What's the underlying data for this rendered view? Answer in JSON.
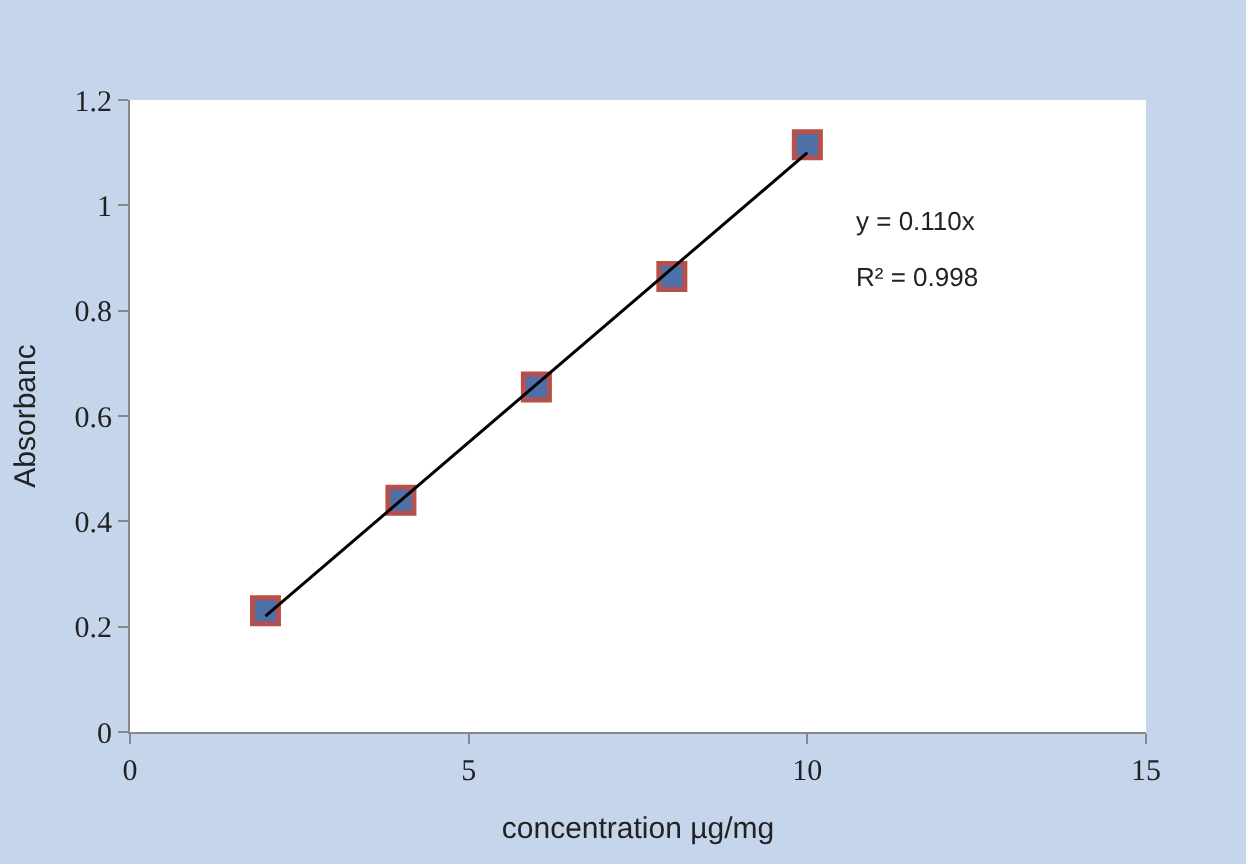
{
  "chart_data": {
    "type": "scatter",
    "xlabel": "concentration µg/mg",
    "ylabel": "Absorbanc",
    "marker": "square",
    "xlim": [
      0,
      15
    ],
    "xticks": [
      0,
      5,
      10,
      15
    ],
    "ylim": [
      0,
      1.2
    ],
    "yticks": [
      0,
      0.2,
      0.4,
      0.6,
      0.8,
      1,
      1.2
    ],
    "series": [
      {
        "type": "scatter",
        "color": "#4f6fa8",
        "x": [
          2,
          4,
          6,
          8,
          10
        ],
        "values": [
          0.23,
          0.44,
          0.655,
          0.865,
          1.115
        ]
      },
      {
        "type": "line",
        "color": "#000000",
        "marker": "none",
        "line_style": "solid",
        "x": [
          2,
          10
        ],
        "values": [
          0.22,
          1.1
        ]
      }
    ],
    "annotations": [
      "y = 0.110x",
      "R² = 0.998"
    ]
  }
}
